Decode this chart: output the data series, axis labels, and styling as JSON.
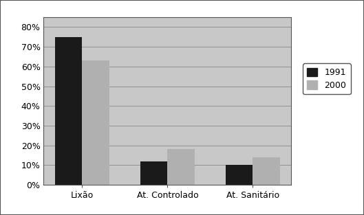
{
  "categories": [
    "Lixão",
    "At. Controlado",
    "At. Sanitário"
  ],
  "values_1991": [
    0.75,
    0.12,
    0.1
  ],
  "values_2000": [
    0.63,
    0.18,
    0.14
  ],
  "color_1991": "#1a1a1a",
  "color_2000": "#b0b0b0",
  "legend_labels": [
    "1991",
    "2000"
  ],
  "ylim": [
    0,
    0.85
  ],
  "yticks": [
    0.0,
    0.1,
    0.2,
    0.3,
    0.4,
    0.5,
    0.6,
    0.7,
    0.8
  ],
  "ytick_labels": [
    "0%",
    "10%",
    "20%",
    "30%",
    "40%",
    "50%",
    "60%",
    "70%",
    "80%"
  ],
  "bar_width": 0.32,
  "plot_bg_color": "#c8c8c8",
  "figure_bg_color": "#ffffff",
  "grid_color": "#888888",
  "legend_fontsize": 9,
  "tick_fontsize": 9,
  "xlabel_fontsize": 9,
  "border_color": "#555555"
}
